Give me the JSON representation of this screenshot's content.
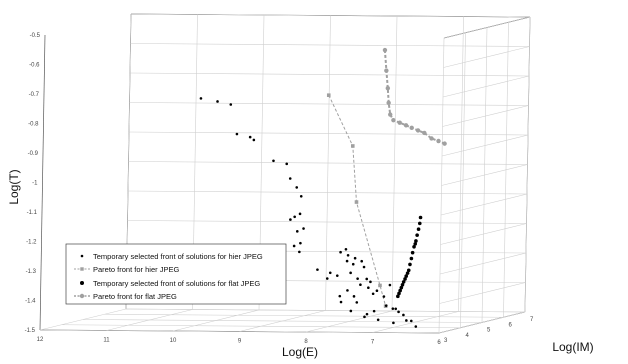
{
  "chart_data": {
    "type": "scatter",
    "projection": "3d",
    "xlabel": "Log(E)",
    "ylabel": "Log(IM)",
    "zlabel": "Log(T)",
    "xlim": [
      6,
      12
    ],
    "ylim": [
      3,
      7
    ],
    "zlim": [
      -1.5,
      -0.5
    ],
    "x_ticks": [
      "12",
      "11",
      "10",
      "9",
      "8",
      "7",
      "6"
    ],
    "y_ticks": [
      "3",
      "4",
      "5",
      "6",
      "7"
    ],
    "z_ticks": [
      "-0.5",
      "-0.6",
      "-0.7",
      "-0.8",
      "-0.9",
      "-1",
      "-1.1",
      "-1.2",
      "-1.3",
      "-1.4",
      "-1.5"
    ],
    "grid": true,
    "legend_position": "bottom-left",
    "series": [
      {
        "name": "Temporary selected front of solutions for hier JPEG",
        "style": "markers",
        "color": "#000000",
        "points": [
          [
            6.5,
            3.6,
            -1.12
          ],
          [
            6.51,
            3.6,
            -1.14
          ],
          [
            6.53,
            3.61,
            -1.16
          ],
          [
            6.55,
            3.61,
            -1.18
          ],
          [
            6.57,
            3.62,
            -1.2
          ],
          [
            6.58,
            3.62,
            -1.21
          ],
          [
            6.6,
            3.63,
            -1.22
          ],
          [
            6.62,
            3.63,
            -1.24
          ],
          [
            6.64,
            3.64,
            -1.26
          ],
          [
            6.66,
            3.64,
            -1.28
          ],
          [
            6.68,
            3.65,
            -1.3
          ],
          [
            6.7,
            3.66,
            -1.31
          ],
          [
            6.72,
            3.66,
            -1.32
          ],
          [
            6.74,
            3.67,
            -1.33
          ],
          [
            6.76,
            3.67,
            -1.34
          ],
          [
            6.78,
            3.68,
            -1.35
          ],
          [
            6.8,
            3.69,
            -1.36
          ],
          [
            6.82,
            3.7,
            -1.37
          ],
          [
            6.84,
            3.71,
            -1.38
          ],
          [
            6.86,
            3.72,
            -1.39
          ]
        ]
      },
      {
        "name": "Pareto front for hier JPEG",
        "style": "line-markers",
        "color": "#a0a0a0",
        "points": [
          [
            7.95,
            3.72,
            -0.71
          ],
          [
            7.55,
            3.64,
            -0.88
          ],
          [
            7.48,
            3.64,
            -1.07
          ],
          [
            7.07,
            3.53,
            -1.35
          ],
          [
            6.98,
            3.53,
            -1.42
          ]
        ]
      },
      {
        "name": "Temporary selected front of solutions for flat JPEG",
        "style": "markers",
        "color": "#000000",
        "points": [
          [
            9.8,
            3.5,
            -0.72
          ],
          [
            9.55,
            3.5,
            -0.73
          ],
          [
            9.35,
            3.5,
            -0.74
          ],
          [
            9.25,
            3.5,
            -0.84
          ],
          [
            9.05,
            3.5,
            -0.85
          ],
          [
            9.0,
            3.52,
            -0.86
          ],
          [
            8.7,
            3.52,
            -0.93
          ],
          [
            8.5,
            3.52,
            -0.94
          ],
          [
            8.45,
            3.54,
            -0.99
          ],
          [
            8.35,
            3.54,
            -1.02
          ],
          [
            8.28,
            3.54,
            -1.05
          ],
          [
            8.3,
            3.56,
            -1.11
          ],
          [
            8.38,
            3.56,
            -1.12
          ],
          [
            8.45,
            3.58,
            -1.13
          ],
          [
            8.25,
            3.58,
            -1.16
          ],
          [
            8.35,
            3.6,
            -1.17
          ],
          [
            8.3,
            3.6,
            -1.21
          ],
          [
            8.4,
            3.62,
            -1.22
          ],
          [
            8.32,
            3.62,
            -1.24
          ],
          [
            8.05,
            3.64,
            -1.3
          ],
          [
            7.75,
            3.64,
            -1.32
          ],
          [
            7.55,
            3.64,
            -1.31
          ],
          [
            7.35,
            3.64,
            -1.29
          ],
          [
            7.6,
            3.62,
            -1.27
          ],
          [
            7.38,
            3.62,
            -1.27
          ],
          [
            7.58,
            3.6,
            -1.25
          ],
          [
            7.48,
            3.62,
            -1.26
          ],
          [
            7.3,
            3.62,
            -1.33
          ],
          [
            7.4,
            3.64,
            -1.35
          ],
          [
            7.45,
            3.66,
            -1.33
          ],
          [
            7.6,
            3.66,
            -1.37
          ],
          [
            7.72,
            3.68,
            -1.39
          ],
          [
            7.7,
            3.68,
            -1.41
          ],
          [
            7.2,
            3.62,
            -1.38
          ],
          [
            7.0,
            3.62,
            -1.42
          ],
          [
            6.85,
            3.6,
            -1.43
          ],
          [
            6.8,
            3.58,
            -1.44
          ],
          [
            6.72,
            3.56,
            -1.45
          ],
          [
            7.3,
            3.66,
            -1.45
          ],
          [
            7.2,
            3.68,
            -1.44
          ],
          [
            7.25,
            3.64,
            -1.34
          ],
          [
            7.55,
            3.68,
            -1.44
          ],
          [
            7.35,
            3.7,
            -1.46
          ],
          [
            7.15,
            3.72,
            -1.47
          ],
          [
            6.92,
            3.72,
            -1.48
          ],
          [
            7.62,
            3.62,
            -1.23
          ],
          [
            7.7,
            3.62,
            -1.24
          ],
          [
            7.5,
            3.6,
            -1.28
          ],
          [
            6.95,
            3.62,
            -1.35
          ],
          [
            7.5,
            3.66,
            -1.39
          ],
          [
            6.6,
            3.56,
            -1.47
          ],
          [
            6.9,
            3.62,
            -1.43
          ],
          [
            7.45,
            3.64,
            -1.41
          ],
          [
            7.9,
            3.64,
            -1.33
          ],
          [
            7.85,
            3.62,
            -1.31
          ],
          [
            7.28,
            3.64,
            -1.36
          ],
          [
            7.15,
            3.64,
            -1.37
          ],
          [
            7.05,
            3.66,
            -1.39
          ],
          [
            6.7,
            3.64,
            -1.47
          ],
          [
            6.55,
            3.62,
            -1.49
          ]
        ]
      },
      {
        "name": "Pareto front for flat JPEG",
        "style": "line-markers",
        "color": "#a0a0a0",
        "points": [
          [
            7.02,
            3.42,
            -0.55
          ],
          [
            7.0,
            3.44,
            -0.62
          ],
          [
            6.98,
            3.46,
            -0.68
          ],
          [
            6.97,
            3.48,
            -0.73
          ],
          [
            6.95,
            3.5,
            -0.77
          ],
          [
            6.92,
            3.56,
            -0.79
          ],
          [
            6.85,
            3.64,
            -0.8
          ],
          [
            6.78,
            3.72,
            -0.81
          ],
          [
            6.72,
            3.8,
            -0.82
          ],
          [
            6.65,
            3.88,
            -0.83
          ],
          [
            6.58,
            3.96,
            -0.84
          ],
          [
            6.5,
            4.05,
            -0.86
          ],
          [
            6.42,
            4.13,
            -0.87
          ],
          [
            6.35,
            4.2,
            -0.88
          ]
        ]
      }
    ]
  }
}
